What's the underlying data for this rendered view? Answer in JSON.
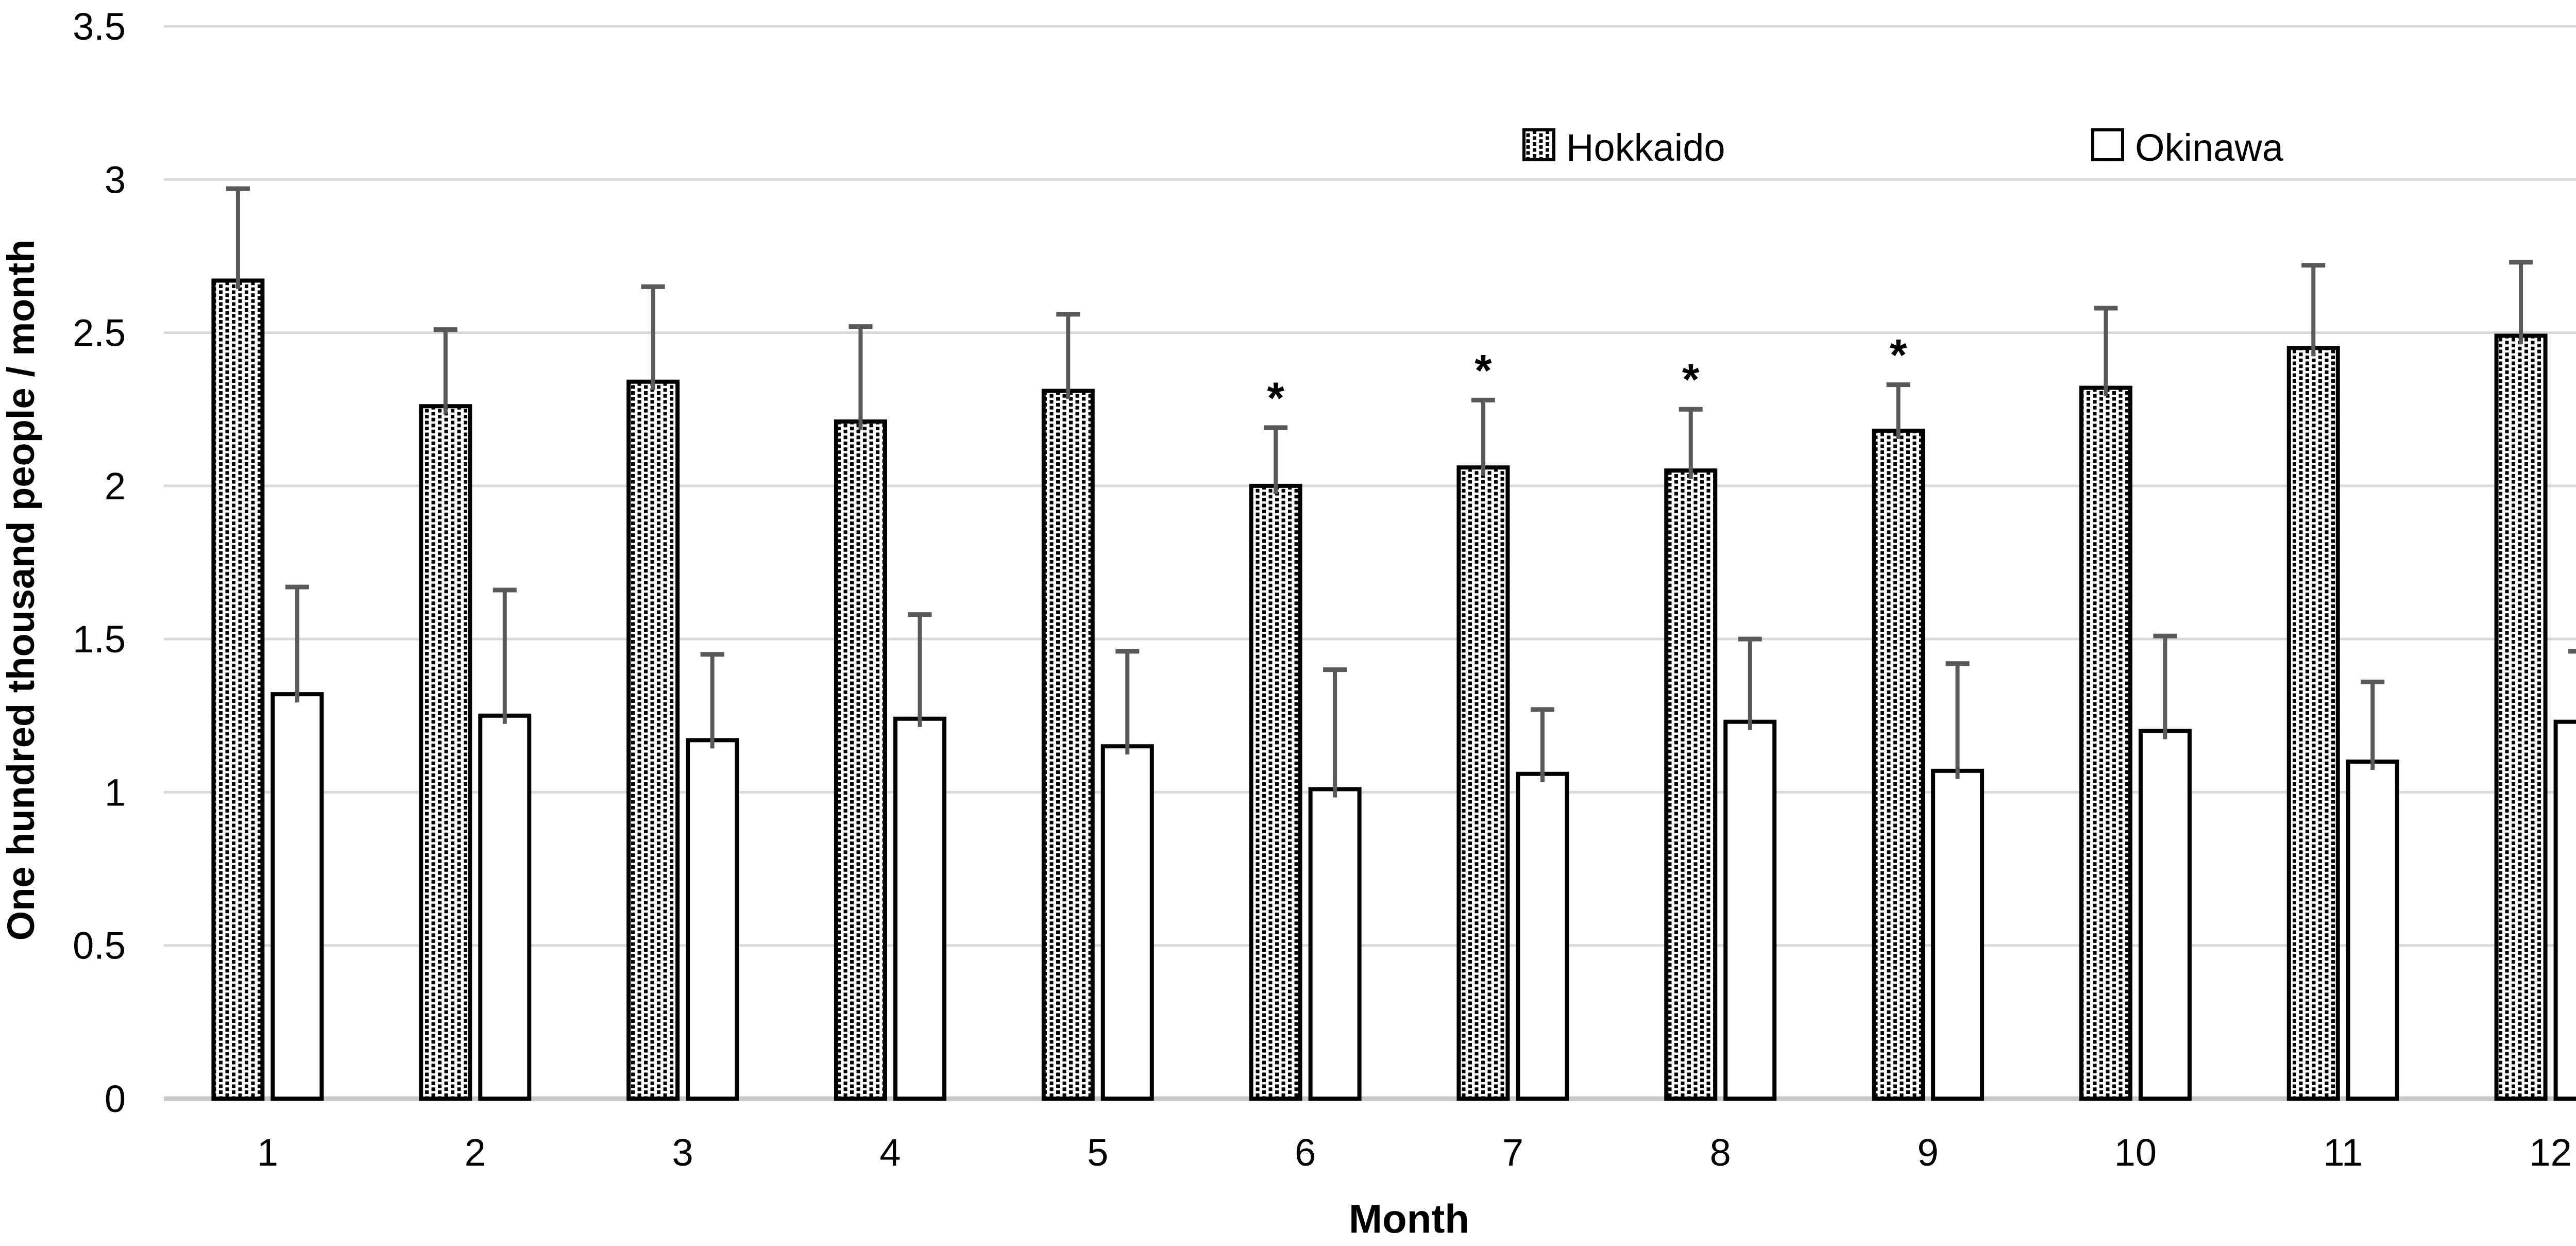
{
  "page": {
    "background": "#ffffff"
  },
  "chart_data": {
    "type": "bar",
    "title": "",
    "xlabel": "Month",
    "ylabel": "One hundred thousand people / month",
    "categories": [
      "1",
      "2",
      "3",
      "4",
      "5",
      "6",
      "7",
      "8",
      "9",
      "10",
      "11",
      "12"
    ],
    "series": [
      {
        "name": "Hokkaido",
        "fill": "dotted-pattern-black-on-white",
        "values": [
          2.67,
          2.26,
          2.34,
          2.21,
          2.31,
          2.0,
          2.06,
          2.05,
          2.18,
          2.32,
          2.45,
          2.49
        ],
        "error_up": [
          0.3,
          0.25,
          0.31,
          0.31,
          0.25,
          0.19,
          0.22,
          0.2,
          0.15,
          0.26,
          0.27,
          0.24
        ],
        "significant": [
          false,
          false,
          false,
          false,
          false,
          true,
          true,
          true,
          true,
          false,
          false,
          false
        ]
      },
      {
        "name": "Okinawa",
        "fill": "white",
        "values": [
          1.32,
          1.25,
          1.17,
          1.24,
          1.15,
          1.01,
          1.06,
          1.23,
          1.07,
          1.2,
          1.1,
          1.23
        ],
        "error_up": [
          0.35,
          0.41,
          0.28,
          0.34,
          0.31,
          0.39,
          0.21,
          0.27,
          0.35,
          0.31,
          0.26,
          0.23
        ],
        "significant": [
          false,
          false,
          false,
          false,
          false,
          false,
          false,
          false,
          false,
          false,
          false,
          false
        ]
      }
    ],
    "ylim": [
      0,
      3.5
    ],
    "ytick_step": 0.5,
    "ytick_labels": [
      "0",
      "0.5",
      "1",
      "1.5",
      "2",
      "2.5",
      "3",
      "3.5"
    ],
    "grid": "horizontal-only",
    "legend_position": "top-center-inside",
    "significance_marker": "*",
    "error_bar_direction": "up",
    "colors": {
      "bar_border": "#000000",
      "error_bar": "#595959",
      "gridline": "#d9d9d9",
      "baseline": "#c9c9c9",
      "text": "#000000",
      "background": "#ffffff"
    }
  }
}
